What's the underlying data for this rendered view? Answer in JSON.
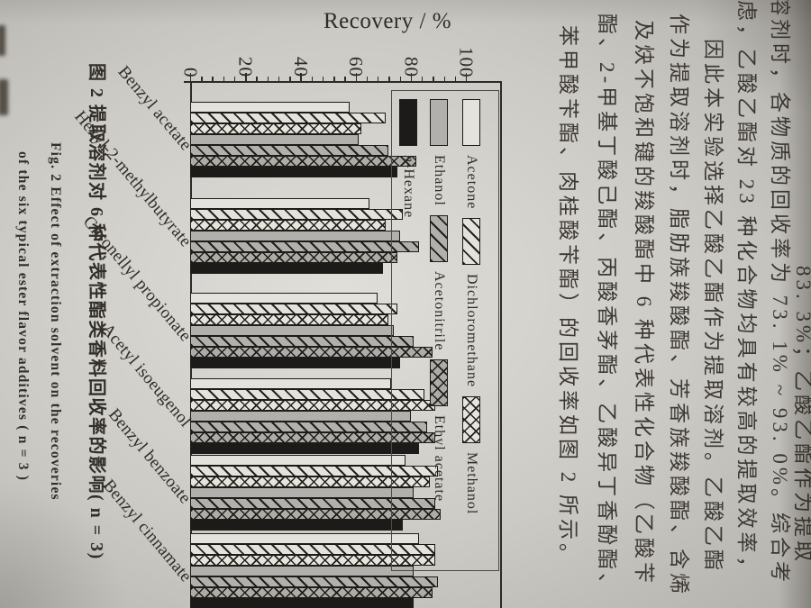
{
  "chart_data": {
    "type": "bar",
    "title": "Recovery / %",
    "value_axis_label": "Recovery / %",
    "units": "%",
    "value_range": [
      0,
      100
    ],
    "major_ticks": [
      0,
      20,
      40,
      60,
      80,
      100
    ],
    "tick_labels": [
      "0",
      "20",
      "40",
      "60",
      "80",
      "100"
    ],
    "minor_tick_step": 4,
    "grid": "off",
    "legend_position": "upper-right inside plot, boxed",
    "categories": [
      "Benzyl acetate",
      "Hexyl-2-methylbutyrate",
      "Citronellyl propionate",
      "Acetyl isoeugenol",
      "Benzyl benzoate",
      "Benzyl cinnamate"
    ],
    "series": [
      {
        "name": "Acetone",
        "pattern": "plain",
        "values": [
          58,
          65,
          68,
          73,
          78,
          83
        ]
      },
      {
        "name": "Dichloromethane",
        "pattern": "diag",
        "values": [
          71,
          77,
          75,
          85,
          90,
          89
        ]
      },
      {
        "name": "Methanol",
        "pattern": "cross",
        "values": [
          62,
          71,
          72,
          89,
          87,
          89
        ]
      },
      {
        "name": "Ethanol",
        "pattern": "gray",
        "values": [
          61,
          76,
          74,
          80,
          81,
          81
        ]
      },
      {
        "name": "Acetonitrile",
        "pattern": "gray-diag",
        "values": [
          72,
          83,
          81,
          86,
          89,
          90
        ]
      },
      {
        "name": "Ethyl acetate",
        "pattern": "gray-cross",
        "values": [
          82,
          75,
          88,
          89,
          91,
          88
        ]
      },
      {
        "name": "n-Hexane",
        "pattern": "black",
        "values": [
          75,
          70,
          76,
          83,
          77,
          81
        ]
      }
    ],
    "legend_columns": [
      [
        "n-Hexane"
      ],
      [
        "Ethanol",
        "Acetonitrile",
        "Ethyl acetate"
      ],
      [
        "Acetone",
        "Dichloromethane",
        "Methanol"
      ]
    ]
  },
  "caption": {
    "zh": "图 2  提取溶剂对 6 种代表性酯类香料回收率的影响( n = 3)",
    "en_line1": "Fig. 2  Effect of extraction solvent on the recoveries",
    "en_line2": "of the six typical ester flavor additives ( n = 3 )"
  },
  "body_text": {
    "columns": [
      "83. 3%；乙酸乙酯作为提取",
      "溶剂时，各物质的回收率为 73. 1% ~ 93. 0%。综合考",
      "虑，乙酸乙酯对 23 种化合物均具有较高的提取效率，",
      "因此本实验选择乙酸乙酯作为提取溶剂。乙酸乙酯",
      "作为提取溶剂时，脂肪族羧酸酯、芳香族羧酸酯、含烯",
      "及炔不饱和键的羧酸酯中 6 种代表性化合物（乙酸苄",
      "酯、2-甲基丁酸己酯、丙酸香茅酯、乙酸异丁香酚酯、",
      "苯甲酸苄酯、肉桂酸苄酯）的回收率如图 2 所示。"
    ]
  },
  "colors": {
    "paper": "#cdcbc6",
    "ink": "#2e2b27",
    "bar_gray": "#b2b0ac",
    "bar_black": "#1d1b19",
    "bar_white": "#e4e2dd"
  }
}
